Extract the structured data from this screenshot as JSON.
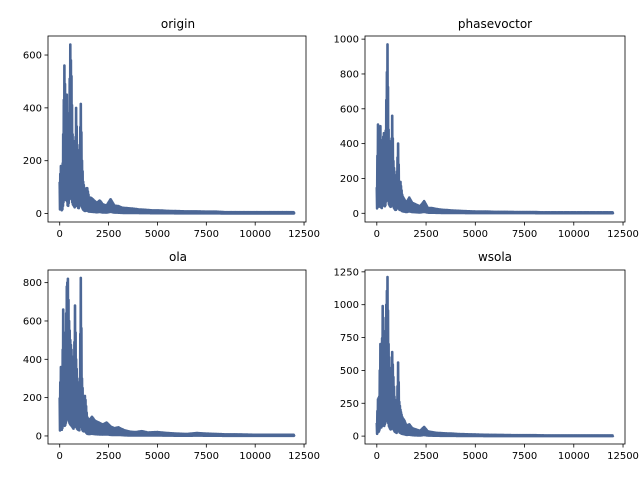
{
  "figure": {
    "color": "#4c6796"
  },
  "chart_data": [
    {
      "type": "line",
      "title": "origin",
      "xlim": [
        -600,
        12600
      ],
      "ylim": [
        -32,
        672
      ],
      "xticks": [
        0,
        2500,
        5000,
        7500,
        10000,
        12500
      ],
      "yticks": [
        0,
        200,
        400,
        600
      ],
      "grid": false,
      "series": [
        {
          "color": "#4c6796",
          "peaks": [
            [
              0,
              120
            ],
            [
              60,
              180
            ],
            [
              120,
              80
            ],
            [
              180,
              300
            ],
            [
              240,
              560
            ],
            [
              300,
              420
            ],
            [
              360,
              450
            ],
            [
              420,
              200
            ],
            [
              480,
              380
            ],
            [
              540,
              640
            ],
            [
              600,
              520
            ],
            [
              660,
              300
            ],
            [
              720,
              250
            ],
            [
              780,
              180
            ],
            [
              840,
              400
            ],
            [
              900,
              260
            ],
            [
              960,
              150
            ],
            [
              1020,
              240
            ],
            [
              1080,
              415
            ],
            [
              1140,
              200
            ],
            [
              1200,
              120
            ],
            [
              1300,
              80
            ],
            [
              1400,
              100
            ],
            [
              1500,
              60
            ],
            [
              1600,
              60
            ],
            [
              1750,
              50
            ],
            [
              1900,
              40
            ],
            [
              2050,
              50
            ],
            [
              2200,
              35
            ],
            [
              2400,
              30
            ],
            [
              2600,
              55
            ],
            [
              2800,
              30
            ],
            [
              3000,
              28
            ],
            [
              3200,
              22
            ],
            [
              3500,
              20
            ],
            [
              3800,
              18
            ],
            [
              4100,
              15
            ],
            [
              4400,
              14
            ],
            [
              4700,
              12
            ],
            [
              5000,
              12
            ],
            [
              5500,
              10
            ],
            [
              6000,
              9
            ],
            [
              6500,
              8
            ],
            [
              7000,
              8
            ],
            [
              7500,
              7
            ],
            [
              8000,
              7
            ],
            [
              8500,
              5
            ],
            [
              9000,
              5
            ],
            [
              10000,
              5
            ],
            [
              11000,
              5
            ],
            [
              12000,
              5
            ]
          ]
        }
      ]
    },
    {
      "type": "line",
      "title": "phasevoctor",
      "xlim": [
        -600,
        12600
      ],
      "ylim": [
        -50,
        1018
      ],
      "xticks": [
        0,
        2500,
        5000,
        7500,
        10000,
        12500
      ],
      "yticks": [
        0,
        200,
        400,
        600,
        800,
        1000
      ],
      "grid": false,
      "series": [
        {
          "color": "#4c6796",
          "peaks": [
            [
              0,
              150
            ],
            [
              60,
              510
            ],
            [
              120,
              260
            ],
            [
              180,
              500
            ],
            [
              240,
              200
            ],
            [
              300,
              420
            ],
            [
              360,
              460
            ],
            [
              420,
              300
            ],
            [
              480,
              650
            ],
            [
              540,
              970
            ],
            [
              600,
              480
            ],
            [
              660,
              350
            ],
            [
              720,
              300
            ],
            [
              780,
              560
            ],
            [
              840,
              300
            ],
            [
              900,
              220
            ],
            [
              960,
              150
            ],
            [
              1020,
              240
            ],
            [
              1080,
              400
            ],
            [
              1140,
              160
            ],
            [
              1200,
              180
            ],
            [
              1300,
              100
            ],
            [
              1400,
              80
            ],
            [
              1500,
              60
            ],
            [
              1650,
              90
            ],
            [
              1800,
              60
            ],
            [
              2000,
              50
            ],
            [
              2200,
              40
            ],
            [
              2400,
              70
            ],
            [
              2600,
              30
            ],
            [
              2800,
              30
            ],
            [
              3000,
              25
            ],
            [
              3300,
              20
            ],
            [
              3600,
              18
            ],
            [
              3900,
              15
            ],
            [
              4200,
              14
            ],
            [
              4500,
              12
            ],
            [
              5000,
              10
            ],
            [
              5500,
              10
            ],
            [
              6000,
              8
            ],
            [
              6500,
              8
            ],
            [
              7000,
              7
            ],
            [
              7500,
              7
            ],
            [
              8000,
              7
            ],
            [
              8500,
              5
            ],
            [
              9000,
              5
            ],
            [
              10000,
              5
            ],
            [
              11000,
              5
            ],
            [
              12000,
              5
            ]
          ]
        }
      ]
    },
    {
      "type": "line",
      "title": "ola",
      "xlim": [
        -600,
        12600
      ],
      "ylim": [
        -42,
        866
      ],
      "xticks": [
        0,
        2500,
        5000,
        7500,
        10000,
        12500
      ],
      "yticks": [
        0,
        200,
        400,
        600,
        800
      ],
      "grid": false,
      "series": [
        {
          "color": "#4c6796",
          "peaks": [
            [
              0,
              200
            ],
            [
              60,
              360
            ],
            [
              120,
              240
            ],
            [
              180,
              660
            ],
            [
              240,
              420
            ],
            [
              300,
              500
            ],
            [
              360,
              780
            ],
            [
              420,
              820
            ],
            [
              480,
              600
            ],
            [
              540,
              500
            ],
            [
              600,
              450
            ],
            [
              660,
              380
            ],
            [
              720,
              300
            ],
            [
              780,
              680
            ],
            [
              840,
              400
            ],
            [
              900,
              300
            ],
            [
              960,
              260
            ],
            [
              1020,
              240
            ],
            [
              1080,
              825
            ],
            [
              1140,
              300
            ],
            [
              1200,
              200
            ],
            [
              1300,
              210
            ],
            [
              1400,
              100
            ],
            [
              1500,
              80
            ],
            [
              1650,
              100
            ],
            [
              1800,
              80
            ],
            [
              2000,
              70
            ],
            [
              2200,
              60
            ],
            [
              2400,
              70
            ],
            [
              2600,
              50
            ],
            [
              2800,
              40
            ],
            [
              3000,
              45
            ],
            [
              3300,
              30
            ],
            [
              3600,
              22
            ],
            [
              3900,
              20
            ],
            [
              4200,
              25
            ],
            [
              4500,
              18
            ],
            [
              5000,
              20
            ],
            [
              5500,
              15
            ],
            [
              6000,
              12
            ],
            [
              6500,
              10
            ],
            [
              7000,
              15
            ],
            [
              7500,
              12
            ],
            [
              8000,
              10
            ],
            [
              8500,
              8
            ],
            [
              9000,
              8
            ],
            [
              10000,
              6
            ],
            [
              11000,
              6
            ],
            [
              12000,
              6
            ]
          ]
        }
      ]
    },
    {
      "type": "line",
      "title": "wsola",
      "xlim": [
        -600,
        12600
      ],
      "ylim": [
        -60,
        1264
      ],
      "xticks": [
        0,
        2500,
        5000,
        7500,
        10000,
        12500
      ],
      "yticks": [
        0,
        250,
        500,
        750,
        1000,
        1250
      ],
      "grid": false,
      "series": [
        {
          "color": "#4c6796",
          "peaks": [
            [
              0,
              100
            ],
            [
              60,
              280
            ],
            [
              120,
              300
            ],
            [
              180,
              700
            ],
            [
              240,
              500
            ],
            [
              300,
              990
            ],
            [
              360,
              600
            ],
            [
              420,
              800
            ],
            [
              480,
              1000
            ],
            [
              540,
              1210
            ],
            [
              600,
              700
            ],
            [
              660,
              500
            ],
            [
              720,
              400
            ],
            [
              780,
              640
            ],
            [
              840,
              450
            ],
            [
              900,
              300
            ],
            [
              960,
              250
            ],
            [
              1020,
              200
            ],
            [
              1080,
              560
            ],
            [
              1140,
              260
            ],
            [
              1200,
              200
            ],
            [
              1300,
              140
            ],
            [
              1400,
              120
            ],
            [
              1500,
              80
            ],
            [
              1650,
              90
            ],
            [
              1800,
              60
            ],
            [
              2000,
              50
            ],
            [
              2200,
              40
            ],
            [
              2400,
              70
            ],
            [
              2600,
              35
            ],
            [
              2800,
              30
            ],
            [
              3000,
              25
            ],
            [
              3300,
              22
            ],
            [
              3600,
              20
            ],
            [
              3900,
              18
            ],
            [
              4200,
              15
            ],
            [
              4500,
              14
            ],
            [
              5000,
              12
            ],
            [
              5500,
              10
            ],
            [
              6000,
              9
            ],
            [
              6500,
              8
            ],
            [
              7000,
              7
            ],
            [
              7500,
              7
            ],
            [
              8000,
              7
            ],
            [
              8500,
              5
            ],
            [
              9000,
              5
            ],
            [
              10000,
              5
            ],
            [
              11000,
              5
            ],
            [
              12000,
              5
            ]
          ]
        }
      ]
    }
  ]
}
